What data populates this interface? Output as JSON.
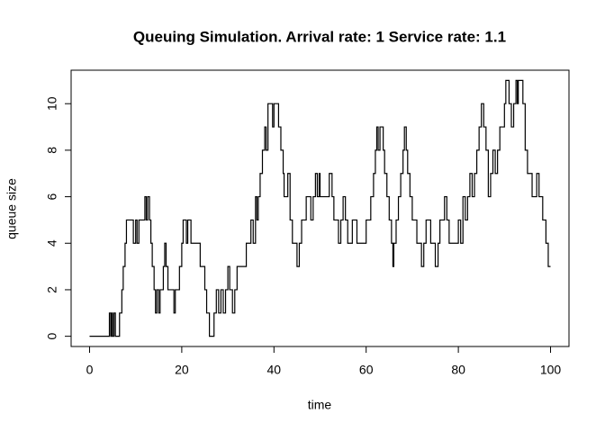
{
  "chart_data": {
    "type": "step",
    "title": "Queuing Simulation. Arrival rate: 1 Service rate: 1.1",
    "x_label": "time",
    "y_label": "queue size",
    "xlim": [
      -4,
      104
    ],
    "ylim": [
      -0.44,
      11.44
    ],
    "xticks": [
      0,
      20,
      40,
      60,
      80,
      100
    ],
    "yticks": [
      0,
      2,
      4,
      6,
      8,
      10
    ],
    "series": [
      {
        "color": "#000000",
        "x": [
          0,
          4.3,
          4.6,
          4.8,
          5.0,
          5.3,
          5.6,
          6.5,
          7,
          7.3,
          7.7,
          8,
          9.5,
          10,
          10.3,
          10.7,
          12,
          12.3,
          12.6,
          13,
          13.3,
          13.6,
          14,
          14.3,
          14.6,
          15,
          15.3,
          16,
          16.3,
          16.6,
          17,
          18.3,
          18.6,
          19.5,
          20,
          20.3,
          21,
          21.3,
          22,
          24,
          25,
          25.4,
          26,
          27,
          27.5,
          28,
          28.5,
          29,
          29.5,
          30,
          30.4,
          31,
          31.5,
          32,
          34,
          35,
          35.5,
          36,
          36.3,
          36.6,
          37,
          37.5,
          38,
          38.3,
          38.7,
          39.7,
          40,
          41,
          41.5,
          42,
          42.2,
          43,
          43.5,
          44,
          45,
          45.5,
          46,
          47,
          48,
          48.5,
          49,
          49.4,
          49.8,
          50,
          52,
          52.6,
          53,
          54,
          54.5,
          55,
          55.5,
          56,
          57,
          58,
          60,
          61,
          61.6,
          62,
          62.3,
          62.6,
          63,
          63.7,
          64,
          64.5,
          65,
          65.5,
          65.8,
          66,
          66.5,
          67,
          67.5,
          68,
          68.3,
          68.7,
          69,
          69.5,
          70,
          71,
          72,
          72.5,
          73,
          74,
          75,
          75.6,
          76,
          77,
          77.5,
          78,
          80,
          80.5,
          81,
          81.5,
          82,
          82.5,
          83,
          83.5,
          84,
          84.5,
          85,
          85.5,
          86,
          86.5,
          87,
          87.5,
          88,
          88.5,
          89,
          90,
          90.3,
          91,
          91.5,
          92,
          92.5,
          92.8,
          93,
          94,
          94.5,
          95,
          96,
          97,
          97.5,
          98.3,
          99,
          99.5,
          100
        ],
        "values": [
          0,
          1,
          0,
          1,
          0,
          1,
          0,
          1,
          2,
          3,
          4,
          5,
          4,
          5,
          4,
          5,
          6,
          5,
          6,
          5,
          4,
          3,
          2,
          1,
          2,
          1,
          2,
          3,
          4,
          3,
          2,
          1,
          2,
          3,
          4,
          5,
          4,
          5,
          4,
          3,
          2,
          1,
          0,
          1,
          2,
          1,
          2,
          1,
          2,
          3,
          2,
          1,
          2,
          3,
          4,
          5,
          4,
          6,
          5,
          6,
          7,
          8,
          9,
          8,
          10,
          9,
          10,
          9,
          8,
          7,
          6,
          7,
          5,
          4,
          3,
          4,
          5,
          6,
          5,
          6,
          7,
          6,
          7,
          6,
          7,
          6,
          5,
          4,
          5,
          6,
          5,
          4,
          5,
          4,
          5,
          6,
          7,
          8,
          9,
          8,
          9,
          8,
          7,
          6,
          5,
          4,
          3,
          4,
          5,
          6,
          7,
          8,
          9,
          8,
          7,
          6,
          5,
          4,
          3,
          4,
          5,
          4,
          3,
          4,
          5,
          6,
          5,
          4,
          5,
          4,
          6,
          5,
          6,
          7,
          6,
          7,
          8,
          9,
          10,
          9,
          8,
          6,
          7,
          8,
          7,
          8,
          9,
          10,
          11,
          10,
          9,
          10,
          11,
          10,
          11,
          10,
          8,
          7,
          6,
          7,
          6,
          5,
          4,
          3,
          3
        ]
      }
    ]
  }
}
